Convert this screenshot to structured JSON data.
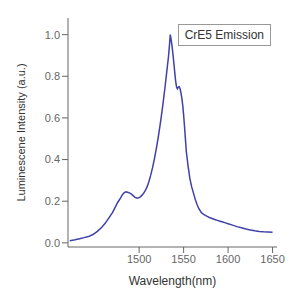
{
  "chart_data": {
    "type": "line",
    "xlabel": "Wavelength(nm)",
    "ylabel": "Luminescene Intensity (a.u.)",
    "x": [
      1422,
      1428,
      1433,
      1438,
      1443,
      1448,
      1453,
      1458,
      1462,
      1466,
      1470,
      1473,
      1476,
      1479,
      1481,
      1483,
      1485,
      1487,
      1489,
      1491,
      1493,
      1495,
      1497,
      1499,
      1501,
      1503,
      1505,
      1507,
      1509,
      1511,
      1513,
      1515,
      1517,
      1519,
      1521,
      1523,
      1525,
      1527,
      1529,
      1531,
      1532,
      1533,
      1534,
      1535,
      1536,
      1537,
      1538,
      1539,
      1540,
      1541,
      1542,
      1543,
      1544,
      1545,
      1546,
      1547,
      1548,
      1549,
      1550,
      1551,
      1552,
      1553,
      1555,
      1557,
      1559,
      1561,
      1563,
      1565,
      1567,
      1570,
      1573,
      1576,
      1579,
      1582,
      1585,
      1588,
      1591,
      1594,
      1597,
      1600,
      1605,
      1610,
      1615,
      1620,
      1625,
      1630,
      1635,
      1640,
      1645,
      1650
    ],
    "series": [
      {
        "name": "CrE5 Emission",
        "color": "#4040aa",
        "values": [
          0.01,
          0.015,
          0.02,
          0.025,
          0.03,
          0.04,
          0.055,
          0.075,
          0.095,
          0.12,
          0.145,
          0.17,
          0.195,
          0.215,
          0.23,
          0.24,
          0.245,
          0.243,
          0.24,
          0.235,
          0.228,
          0.22,
          0.215,
          0.215,
          0.22,
          0.228,
          0.238,
          0.252,
          0.27,
          0.295,
          0.325,
          0.36,
          0.4,
          0.445,
          0.495,
          0.55,
          0.61,
          0.675,
          0.745,
          0.82,
          0.858,
          0.895,
          0.945,
          1.0,
          0.975,
          0.945,
          0.905,
          0.865,
          0.82,
          0.778,
          0.75,
          0.74,
          0.748,
          0.75,
          0.74,
          0.72,
          0.695,
          0.66,
          0.615,
          0.56,
          0.5,
          0.44,
          0.37,
          0.31,
          0.27,
          0.24,
          0.21,
          0.185,
          0.165,
          0.145,
          0.135,
          0.128,
          0.122,
          0.117,
          0.112,
          0.108,
          0.104,
          0.1,
          0.096,
          0.092,
          0.085,
          0.078,
          0.072,
          0.066,
          0.062,
          0.058,
          0.055,
          0.053,
          0.052,
          0.051
        ]
      }
    ],
    "xlim": [
      1420,
      1655
    ],
    "ylim": [
      -0.02,
      1.08
    ],
    "xticks": [
      1500,
      1550,
      1600,
      1650
    ],
    "yticks": [
      {
        "value": 0,
        "label": "0.0"
      },
      0.2,
      0.4,
      0.6,
      0.8,
      {
        "value": 1,
        "label": "1.0"
      }
    ],
    "grid": false,
    "legend": "upper right"
  }
}
